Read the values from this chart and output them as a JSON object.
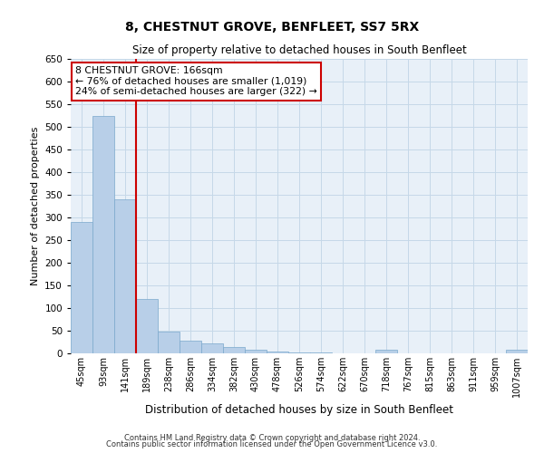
{
  "title": "8, CHESTNUT GROVE, BENFLEET, SS7 5RX",
  "subtitle": "Size of property relative to detached houses in South Benfleet",
  "xlabel": "Distribution of detached houses by size in South Benfleet",
  "ylabel": "Number of detached properties",
  "footer1": "Contains HM Land Registry data © Crown copyright and database right 2024.",
  "footer2": "Contains public sector information licensed under the Open Government Licence v3.0.",
  "categories": [
    "45sqm",
    "93sqm",
    "141sqm",
    "189sqm",
    "238sqm",
    "286sqm",
    "334sqm",
    "382sqm",
    "430sqm",
    "478sqm",
    "526sqm",
    "574sqm",
    "622sqm",
    "670sqm",
    "718sqm",
    "767sqm",
    "815sqm",
    "863sqm",
    "911sqm",
    "959sqm",
    "1007sqm"
  ],
  "values": [
    290,
    525,
    340,
    120,
    48,
    28,
    22,
    15,
    8,
    5,
    3,
    3,
    0,
    0,
    8,
    0,
    0,
    0,
    0,
    0,
    8
  ],
  "bar_color": "#b8cfe8",
  "bar_edge_color": "#7aa8cc",
  "grid_color": "#c5d8e8",
  "bg_color": "#e8f0f8",
  "vline_color": "#cc0000",
  "annotation_text_line1": "8 CHESTNUT GROVE: 166sqm",
  "annotation_text_line2": "← 76% of detached houses are smaller (1,019)",
  "annotation_text_line3": "24% of semi-detached houses are larger (322) →",
  "annotation_box_facecolor": "#ffffff",
  "annotation_box_edgecolor": "#cc0000",
  "ylim": [
    0,
    650
  ],
  "yticks": [
    0,
    50,
    100,
    150,
    200,
    250,
    300,
    350,
    400,
    450,
    500,
    550,
    600,
    650
  ]
}
